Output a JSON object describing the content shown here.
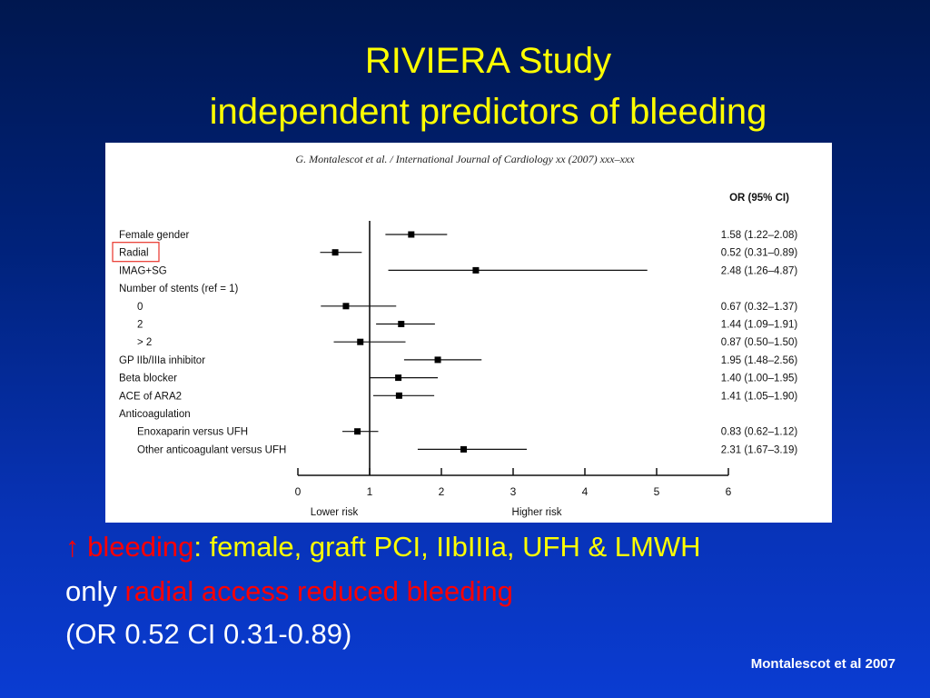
{
  "slide": {
    "title": "RIVIERA Study",
    "subtitle": "independent predictors of bleeding",
    "line1_arrow": "↑",
    "line1_red": "bleeding",
    "line1_rest": ": female, graft PCI, IIbIIIa, UFH & LMWH",
    "line2_prefix": "only ",
    "line2_red": "radial access reduced bleeding",
    "line3": "(OR 0.52 CI 0.31-0.89)",
    "footer": "Montalescot et al 2007"
  },
  "colors": {
    "title": "#ffff00",
    "text": "#ffffff",
    "accent_red": "#ff0000",
    "highlight_box": "#e8332a"
  },
  "chart_data": {
    "type": "forest",
    "citation": "G. Montalescot et al. / International Journal of Cardiology xx (2007) xxx–xxx",
    "column_header": "OR (95% CI)",
    "xlim": [
      0,
      6
    ],
    "xticks": [
      0,
      1,
      2,
      3,
      4,
      5,
      6
    ],
    "reference_line": 1,
    "lower_label": "Lower risk",
    "higher_label": "Higher risk",
    "highlighted_row": "Radial",
    "rows": [
      {
        "label": "Female gender",
        "indent": 0,
        "or": 1.58,
        "lo": 1.22,
        "hi": 2.08,
        "ci_text": "1.58 (1.22–2.08)"
      },
      {
        "label": "Radial",
        "indent": 0,
        "or": 0.52,
        "lo": 0.31,
        "hi": 0.89,
        "ci_text": "0.52 (0.31–0.89)"
      },
      {
        "label": "IMAG+SG",
        "indent": 0,
        "or": 2.48,
        "lo": 1.26,
        "hi": 4.87,
        "ci_text": "2.48 (1.26–4.87)"
      },
      {
        "label": "Number of stents (ref = 1)",
        "indent": 0
      },
      {
        "label": "0",
        "indent": 1,
        "or": 0.67,
        "lo": 0.32,
        "hi": 1.37,
        "ci_text": "0.67 (0.32–1.37)"
      },
      {
        "label": "2",
        "indent": 1,
        "or": 1.44,
        "lo": 1.09,
        "hi": 1.91,
        "ci_text": "1.44 (1.09–1.91)"
      },
      {
        "label": "> 2",
        "indent": 1,
        "or": 0.87,
        "lo": 0.5,
        "hi": 1.5,
        "ci_text": "0.87 (0.50–1.50)"
      },
      {
        "label": "GP IIb/IIIa inhibitor",
        "indent": 0,
        "or": 1.95,
        "lo": 1.48,
        "hi": 2.56,
        "ci_text": "1.95 (1.48–2.56)"
      },
      {
        "label": "Beta blocker",
        "indent": 0,
        "or": 1.4,
        "lo": 1.0,
        "hi": 1.95,
        "ci_text": "1.40 (1.00–1.95)"
      },
      {
        "label": "ACE of ARA2",
        "indent": 0,
        "or": 1.41,
        "lo": 1.05,
        "hi": 1.9,
        "ci_text": "1.41 (1.05–1.90)"
      },
      {
        "label": "Anticoagulation",
        "indent": 0
      },
      {
        "label": "Enoxaparin versus UFH",
        "indent": 1,
        "or": 0.83,
        "lo": 0.62,
        "hi": 1.12,
        "ci_text": "0.83 (0.62–1.12)"
      },
      {
        "label": "Other anticoagulant versus UFH",
        "indent": 1,
        "or": 2.31,
        "lo": 1.67,
        "hi": 3.19,
        "ci_text": "2.31 (1.67–3.19)"
      }
    ]
  }
}
